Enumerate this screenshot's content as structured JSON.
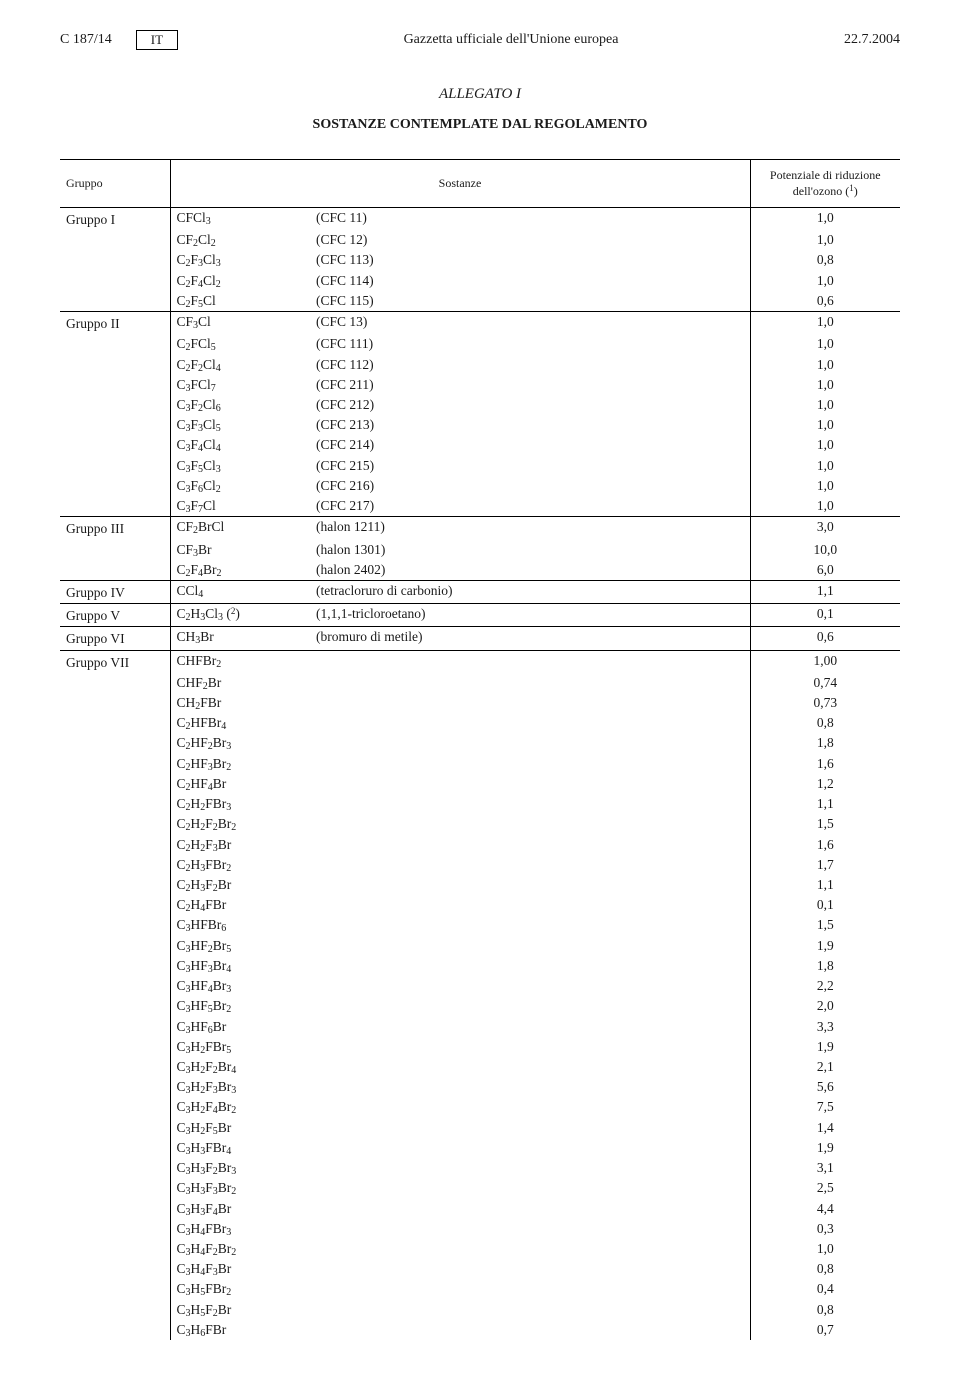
{
  "header": {
    "page_ref": "C 187/14",
    "lang": "IT",
    "journal": "Gazzetta ufficiale dell'Unione europea",
    "date": "22.7.2004"
  },
  "annex_title": "ALLEGATO I",
  "subtitle": "SOSTANZE CONTEMPLATE DAL REGOLAMENTO",
  "columns": {
    "group": "Gruppo",
    "substance": "Sostanze",
    "potential": "Potenziale di riduzione dell'ozono (¹)"
  },
  "groups": [
    {
      "label": "Gruppo I",
      "rows": [
        {
          "f": "CFCl₃",
          "n": "(CFC 11)",
          "v": "1,0"
        },
        {
          "f": "CF₂Cl₂",
          "n": "(CFC 12)",
          "v": "1,0"
        },
        {
          "f": "C₂F₃Cl₃",
          "n": "(CFC 113)",
          "v": "0,8"
        },
        {
          "f": "C₂F₄Cl₂",
          "n": "(CFC 114)",
          "v": "1,0"
        },
        {
          "f": "C₂F₅Cl",
          "n": "(CFC 115)",
          "v": "0,6"
        }
      ]
    },
    {
      "label": "Gruppo II",
      "rows": [
        {
          "f": "CF₃Cl",
          "n": "(CFC 13)",
          "v": "1,0"
        },
        {
          "f": "C₂FCl₅",
          "n": "(CFC 111)",
          "v": "1,0"
        },
        {
          "f": "C₂F₂Cl₄",
          "n": "(CFC 112)",
          "v": "1,0"
        },
        {
          "f": "C₃FCl₇",
          "n": "(CFC 211)",
          "v": "1,0"
        },
        {
          "f": "C₃F₂Cl₆",
          "n": "(CFC 212)",
          "v": "1,0"
        },
        {
          "f": "C₃F₃Cl₅",
          "n": "(CFC 213)",
          "v": "1,0"
        },
        {
          "f": "C₃F₄Cl₄",
          "n": "(CFC 214)",
          "v": "1,0"
        },
        {
          "f": "C₃F₅Cl₃",
          "n": "(CFC 215)",
          "v": "1,0"
        },
        {
          "f": "C₃F₆Cl₂",
          "n": "(CFC 216)",
          "v": "1,0"
        },
        {
          "f": "C₃F₇Cl",
          "n": "(CFC 217)",
          "v": "1,0"
        }
      ]
    },
    {
      "label": "Gruppo III",
      "rows": [
        {
          "f": "CF₂BrCl",
          "n": "(halon 1211)",
          "v": "3,0"
        },
        {
          "f": "CF₃Br",
          "n": "(halon 1301)",
          "v": "10,0"
        },
        {
          "f": "C₂F₄Br₂",
          "n": "(halon 2402)",
          "v": "6,0"
        }
      ]
    },
    {
      "label": "Gruppo IV",
      "rows": [
        {
          "f": "CCl₄",
          "n": "(tetracloruro di carbonio)",
          "v": "1,1"
        }
      ]
    },
    {
      "label": "Gruppo V",
      "rows": [
        {
          "f": "C₂H₃Cl₃ (²)",
          "n": "(1,1,1-tricloroetano)",
          "v": "0,1"
        }
      ]
    },
    {
      "label": "Gruppo VI",
      "rows": [
        {
          "f": "CH₃Br",
          "n": "(bromuro di metile)",
          "v": "0,6"
        }
      ]
    },
    {
      "label": "Gruppo VII",
      "rows": [
        {
          "f": "CHFBr₂",
          "n": "",
          "v": "1,00"
        },
        {
          "f": "CHF₂Br",
          "n": "",
          "v": "0,74"
        },
        {
          "f": "CH₂FBr",
          "n": "",
          "v": "0,73"
        },
        {
          "f": "C₂HFBr₄",
          "n": "",
          "v": "0,8"
        },
        {
          "f": "C₂HF₂Br₃",
          "n": "",
          "v": "1,8"
        },
        {
          "f": "C₂HF₃Br₂",
          "n": "",
          "v": "1,6"
        },
        {
          "f": "C₂HF₄Br",
          "n": "",
          "v": "1,2"
        },
        {
          "f": "C₂H₂FBr₃",
          "n": "",
          "v": "1,1"
        },
        {
          "f": "C₂H₂F₂Br₂",
          "n": "",
          "v": "1,5"
        },
        {
          "f": "C₂H₂F₃Br",
          "n": "",
          "v": "1,6"
        },
        {
          "f": "C₂H₃FBr₂",
          "n": "",
          "v": "1,7"
        },
        {
          "f": "C₂H₃F₂Br",
          "n": "",
          "v": "1,1"
        },
        {
          "f": "C₂H₄FBr",
          "n": "",
          "v": "0,1"
        },
        {
          "f": "C₃HFBr₆",
          "n": "",
          "v": "1,5"
        },
        {
          "f": "C₃HF₂Br₅",
          "n": "",
          "v": "1,9"
        },
        {
          "f": "C₃HF₃Br₄",
          "n": "",
          "v": "1,8"
        },
        {
          "f": "C₃HF₄Br₃",
          "n": "",
          "v": "2,2"
        },
        {
          "f": "C₃HF₅Br₂",
          "n": "",
          "v": "2,0"
        },
        {
          "f": "C₃HF₆Br",
          "n": "",
          "v": "3,3"
        },
        {
          "f": "C₃H₂FBr₅",
          "n": "",
          "v": "1,9"
        },
        {
          "f": "C₃H₂F₂Br₄",
          "n": "",
          "v": "2,1"
        },
        {
          "f": "C₃H₂F₃Br₃",
          "n": "",
          "v": "5,6"
        },
        {
          "f": "C₃H₂F₄Br₂",
          "n": "",
          "v": "7,5"
        },
        {
          "f": "C₃H₂F₅Br",
          "n": "",
          "v": "1,4"
        },
        {
          "f": "C₃H₃FBr₄",
          "n": "",
          "v": "1,9"
        },
        {
          "f": "C₃H₃F₂Br₃",
          "n": "",
          "v": "3,1"
        },
        {
          "f": "C₃H₃F₃Br₂",
          "n": "",
          "v": "2,5"
        },
        {
          "f": "C₃H₃F₄Br",
          "n": "",
          "v": "4,4"
        },
        {
          "f": "C₃H₄FBr₃",
          "n": "",
          "v": "0,3"
        },
        {
          "f": "C₃H₄F₂Br₂",
          "n": "",
          "v": "1,0"
        },
        {
          "f": "C₃H₄F₃Br",
          "n": "",
          "v": "0,8"
        },
        {
          "f": "C₃H₅FBr₂",
          "n": "",
          "v": "0,4"
        },
        {
          "f": "C₃H₅F₂Br",
          "n": "",
          "v": "0,8"
        },
        {
          "f": "C₃H₆FBr",
          "n": "",
          "v": "0,7"
        }
      ]
    }
  ]
}
